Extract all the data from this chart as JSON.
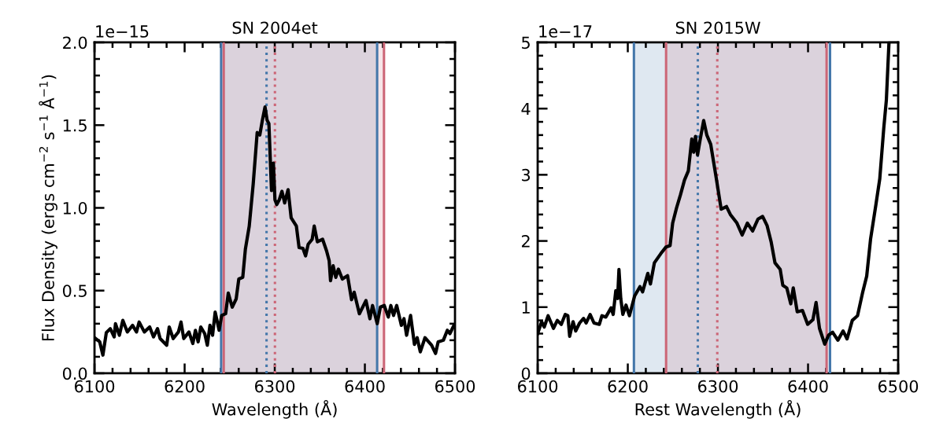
{
  "chart_data": [
    {
      "type": "line",
      "title": "SN 2004et",
      "xlabel": "Wavelength (Å)",
      "ylabel": "Flux Density (ergs cm$^{−2}$ s$^{−1}$ Å$^{−1}$)",
      "annotations": [
        "1e−15"
      ],
      "xlim": [
        6100,
        6500
      ],
      "xticks": [
        6100,
        6200,
        6300,
        6400,
        6500
      ],
      "ylim": [
        0,
        2.0
      ],
      "yticks": [
        {
          "value": 0,
          "label": "0.0"
        },
        {
          "value": 0.5,
          "label": "0.5"
        },
        {
          "value": 1.0,
          "label": "1.0"
        },
        {
          "value": 1.5,
          "label": "1.5"
        },
        {
          "value": 2.0,
          "label": "2.0"
        }
      ],
      "bands": [
        {
          "axis": "x",
          "from": 6240.5,
          "to": 6413.6,
          "color": "#4477aa"
        },
        {
          "axis": "x",
          "from": 6243.4,
          "to": 6421.2,
          "color": "#cc6677"
        }
      ],
      "ref_lines": [
        {
          "axis": "x",
          "value": 6240.5,
          "color": "#4477aa",
          "line_style": "solid"
        },
        {
          "axis": "x",
          "value": 6413.6,
          "color": "#4477aa",
          "line_style": "solid"
        },
        {
          "axis": "x",
          "value": 6243.4,
          "color": "#cc6677",
          "line_style": "solid"
        },
        {
          "axis": "x",
          "value": 6421.2,
          "color": "#cc6677",
          "line_style": "solid"
        },
        {
          "axis": "x",
          "value": 6290.9,
          "color": "#4477aa",
          "line_style": "dotted"
        },
        {
          "axis": "x",
          "value": 6300.2,
          "color": "#cc6677",
          "line_style": "dotted"
        }
      ],
      "series": [
        {
          "color": "#000000",
          "x": [
            6100,
            6105.8,
            6109.3,
            6113.1,
            6117.5,
            6121.8,
            6123.3,
            6127.6,
            6131.4,
            6136.4,
            6142.2,
            6146.6,
            6149.5,
            6155.3,
            6161.2,
            6165.5,
            6169.9,
            6172.8,
            6180.1,
            6182.9,
            6187.3,
            6193.1,
            6196,
            6199,
            6204.8,
            6209.1,
            6212,
            6215,
            6217.9,
            6222.3,
            6225.2,
            6228.1,
            6231,
            6233.9,
            6238.3,
            6241.1,
            6245.5,
            6248.4,
            6252.8,
            6257.2,
            6260.1,
            6264.5,
            6267.4,
            6271.7,
            6276.1,
            6280.5,
            6283.4,
            6286.3,
            6289.2,
            6291.5,
            6293.5,
            6296.4,
            6298.5,
            6300.2,
            6302.2,
            6305.1,
            6308,
            6311,
            6314.8,
            6318.2,
            6324,
            6327,
            6331.3,
            6334.2,
            6337.1,
            6341.5,
            6343.8,
            6347.3,
            6353.1,
            6357.5,
            6360.4,
            6361.9,
            6364.8,
            6367.7,
            6370.6,
            6375,
            6380.8,
            6385.2,
            6388.1,
            6393.9,
            6401.2,
            6405.6,
            6408.5,
            6413.7,
            6417.2,
            6421.5,
            6426,
            6428.8,
            6431.8,
            6435.3,
            6440.5,
            6443.4,
            6446.3,
            6450.7,
            6455,
            6458,
            6461.5,
            6466.7,
            6474,
            6478.4,
            6481.3,
            6487.1,
            6491.5,
            6494.4,
            6498.8,
            6500
          ],
          "values": [
            0.215,
            0.19,
            0.11,
            0.246,
            0.27,
            0.22,
            0.3,
            0.23,
            0.32,
            0.25,
            0.29,
            0.25,
            0.31,
            0.25,
            0.28,
            0.22,
            0.27,
            0.21,
            0.17,
            0.28,
            0.21,
            0.25,
            0.31,
            0.21,
            0.25,
            0.18,
            0.26,
            0.19,
            0.28,
            0.24,
            0.17,
            0.29,
            0.23,
            0.37,
            0.26,
            0.35,
            0.36,
            0.485,
            0.4,
            0.45,
            0.57,
            0.58,
            0.75,
            0.89,
            1.145,
            1.455,
            1.44,
            1.53,
            1.61,
            1.53,
            1.51,
            1.105,
            1.27,
            1.05,
            1.02,
            1.05,
            1.1,
            1.03,
            1.11,
            0.94,
            0.89,
            0.76,
            0.755,
            0.71,
            0.78,
            0.81,
            0.89,
            0.795,
            0.81,
            0.74,
            0.68,
            0.56,
            0.65,
            0.58,
            0.63,
            0.57,
            0.59,
            0.445,
            0.49,
            0.36,
            0.44,
            0.33,
            0.41,
            0.3,
            0.4,
            0.41,
            0.34,
            0.41,
            0.35,
            0.41,
            0.29,
            0.33,
            0.23,
            0.35,
            0.175,
            0.215,
            0.13,
            0.215,
            0.17,
            0.12,
            0.19,
            0.2,
            0.26,
            0.24,
            0.29,
            0.285
          ]
        }
      ]
    },
    {
      "type": "line",
      "title": "SN 2015W",
      "xlabel": "Rest Wavelength (Å)",
      "annotations": [
        "1e−17"
      ],
      "xlim": [
        6100,
        6500
      ],
      "xticks": [
        6100,
        6200,
        6300,
        6400,
        6500
      ],
      "ylim": [
        0,
        5
      ],
      "yticks": [
        0,
        1,
        2,
        3,
        4,
        5
      ],
      "bands": [
        {
          "axis": "x",
          "from": 6206.8,
          "to": 6424.4,
          "color": "#4477aa"
        },
        {
          "axis": "x",
          "from": 6242.5,
          "to": 6420.6,
          "color": "#cc6677"
        }
      ],
      "ref_lines": [
        {
          "axis": "x",
          "value": 6206.8,
          "color": "#4477aa",
          "line_style": "solid"
        },
        {
          "axis": "x",
          "value": 6424.4,
          "color": "#4477aa",
          "line_style": "solid"
        },
        {
          "axis": "x",
          "value": 6242.5,
          "color": "#cc6677",
          "line_style": "solid"
        },
        {
          "axis": "x",
          "value": 6420.6,
          "color": "#cc6677",
          "line_style": "solid"
        },
        {
          "axis": "x",
          "value": 6277.7,
          "color": "#4477aa",
          "line_style": "dotted"
        },
        {
          "axis": "x",
          "value": 6299.3,
          "color": "#cc6677",
          "line_style": "dotted"
        }
      ],
      "series": [
        {
          "color": "#000000",
          "x": [
            6100,
            6104.4,
            6107.3,
            6111.6,
            6117.5,
            6121.8,
            6126.2,
            6130.6,
            6133.5,
            6135.5,
            6139.3,
            6142.2,
            6146.5,
            6150.9,
            6153.8,
            6158.2,
            6162.5,
            6168.4,
            6171.3,
            6175.6,
            6181.5,
            6183.8,
            6186.7,
            6188.7,
            6190.2,
            6192.2,
            6194.5,
            6198,
            6201.8,
            6207.6,
            6213.5,
            6216.4,
            6222.2,
            6225.1,
            6229.5,
            6236.7,
            6242.5,
            6246.9,
            6249.8,
            6254.1,
            6258.5,
            6262.9,
            6267.2,
            6271,
            6273.1,
            6275.1,
            6277.4,
            6280.4,
            6284.2,
            6287.7,
            6292,
            6297.8,
            6303.6,
            6309.5,
            6313.8,
            6321.1,
            6326.9,
            6332.7,
            6338.5,
            6344.4,
            6349.6,
            6354.6,
            6359,
            6363.3,
            6369.1,
            6372,
            6376.4,
            6380.8,
            6383.6,
            6388,
            6393.8,
            6399.6,
            6405.4,
            6408.9,
            6412.7,
            6418.5,
            6422.9,
            6427.3,
            6433.1,
            6438.9,
            6443.3,
            6449.1,
            6454.9,
            6460.7,
            6465.1,
            6469.4,
            6475.2,
            6479.6,
            6484,
            6486.9,
            6489.8
          ],
          "values": [
            0.6,
            0.78,
            0.7,
            0.87,
            0.68,
            0.8,
            0.74,
            0.89,
            0.87,
            0.56,
            0.78,
            0.64,
            0.76,
            0.83,
            0.76,
            0.89,
            0.76,
            0.74,
            0.87,
            0.85,
            0.99,
            0.89,
            1.25,
            1.13,
            1.57,
            1.13,
            0.89,
            1.03,
            0.87,
            1.17,
            1.31,
            1.23,
            1.51,
            1.35,
            1.67,
            1.81,
            1.91,
            1.93,
            2.27,
            2.5,
            2.7,
            2.92,
            3.06,
            3.54,
            3.34,
            3.58,
            3.3,
            3.54,
            3.82,
            3.6,
            3.46,
            2.98,
            2.48,
            2.52,
            2.4,
            2.27,
            2.09,
            2.27,
            2.15,
            2.33,
            2.37,
            2.23,
            1.99,
            1.67,
            1.57,
            1.33,
            1.29,
            1.05,
            1.29,
            0.93,
            0.95,
            0.74,
            0.81,
            1.07,
            0.68,
            0.44,
            0.58,
            0.62,
            0.5,
            0.64,
            0.52,
            0.8,
            0.87,
            1.23,
            1.47,
            2.03,
            2.54,
            2.94,
            3.7,
            4.13,
            5.0
          ]
        }
      ]
    }
  ]
}
